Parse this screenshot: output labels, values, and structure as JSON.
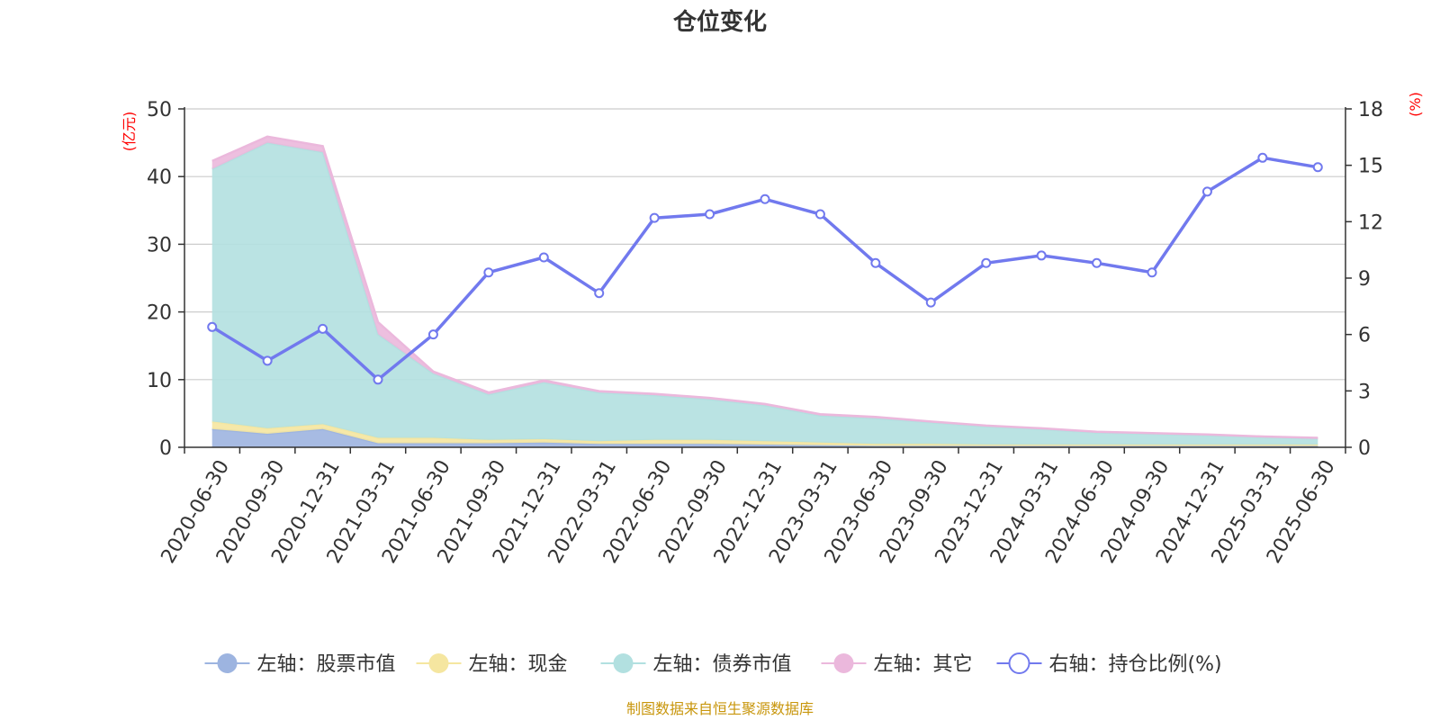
{
  "chart_data": {
    "type": "area",
    "title": "仓位变化",
    "left_unit": "(亿元)",
    "right_unit": "(%)",
    "categories": [
      "2020-06-30",
      "2020-09-30",
      "2020-12-31",
      "2021-03-31",
      "2021-06-30",
      "2021-09-30",
      "2021-12-31",
      "2022-03-31",
      "2022-06-30",
      "2022-09-30",
      "2022-12-31",
      "2023-03-31",
      "2023-06-30",
      "2023-09-30",
      "2023-12-31",
      "2024-03-31",
      "2024-06-30",
      "2024-09-30",
      "2024-12-31",
      "2025-03-31",
      "2025-06-30"
    ],
    "left_axis": {
      "min": 0,
      "max": 50,
      "ticks": [
        "0",
        "10",
        "20",
        "30",
        "40",
        "50"
      ],
      "tick_values": [
        0,
        10,
        20,
        30,
        40,
        50
      ]
    },
    "right_axis": {
      "min": 0,
      "max": 18,
      "ticks": [
        "0",
        "3",
        "6",
        "9",
        "12",
        "15",
        "18"
      ],
      "tick_values": [
        0,
        3,
        6,
        9,
        12,
        15,
        18
      ]
    },
    "grid": true,
    "legend_position": "bottom",
    "series": [
      {
        "name": "左轴：股票市值",
        "axis": "left",
        "kind": "stacked-area",
        "color": "#9db4e0",
        "values": [
          2.7,
          2.0,
          2.7,
          0.6,
          0.6,
          0.6,
          0.7,
          0.5,
          0.5,
          0.5,
          0.4,
          0.3,
          0.2,
          0.2,
          0.2,
          0.2,
          0.2,
          0.2,
          0.2,
          0.2,
          0.2
        ]
      },
      {
        "name": "左轴：现金",
        "axis": "left",
        "kind": "stacked-area",
        "color": "#f5e6a0",
        "values": [
          1.1,
          0.8,
          0.7,
          0.8,
          0.8,
          0.5,
          0.5,
          0.4,
          0.6,
          0.6,
          0.5,
          0.4,
          0.3,
          0.3,
          0.2,
          0.2,
          0.2,
          0.2,
          0.2,
          0.2,
          0.2
        ]
      },
      {
        "name": "左轴：债券市值",
        "axis": "left",
        "kind": "stacked-area",
        "color": "#b2e0e0",
        "values": [
          37.3,
          42.2,
          40.2,
          15.3,
          9.5,
          6.7,
          8.4,
          7.2,
          6.6,
          6.0,
          5.3,
          4.0,
          3.8,
          3.2,
          2.7,
          2.3,
          1.8,
          1.6,
          1.4,
          1.1,
          0.9
        ]
      },
      {
        "name": "左轴：其它",
        "axis": "left",
        "kind": "stacked-area",
        "color": "#ebb8dc",
        "values": [
          1.2,
          0.9,
          0.9,
          1.8,
          0.3,
          0.3,
          0.3,
          0.2,
          0.2,
          0.2,
          0.2,
          0.2,
          0.2,
          0.1,
          0.1,
          0.1,
          0.1,
          0.1,
          0.1,
          0.1,
          0.1
        ]
      },
      {
        "name": "右轴：持仓比例(%)",
        "axis": "right",
        "kind": "line",
        "color": "#7179ee",
        "values": [
          6.4,
          4.6,
          6.3,
          3.6,
          6.0,
          9.3,
          10.1,
          8.2,
          12.2,
          12.4,
          13.2,
          12.4,
          9.8,
          7.7,
          9.8,
          10.2,
          9.8,
          9.3,
          13.6,
          15.4,
          14.9
        ]
      }
    ]
  },
  "footer": {
    "source": "制图数据来自恒生聚源数据库"
  },
  "colors": {
    "grid": "#cccccc",
    "axis": "#333333",
    "unit": "#ff0000",
    "source": "#c8960c"
  }
}
